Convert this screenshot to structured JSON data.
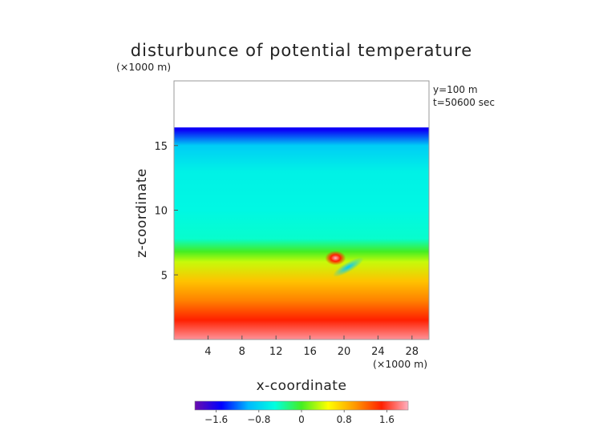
{
  "chart_data": {
    "type": "heatmap",
    "title": "disturbunce of potential temperature",
    "unit_top": "(×1000 m)",
    "unit_bottom": "(×1000 m)",
    "xlabel": "x-coordinate",
    "ylabel": "z-coordinate",
    "annotations": [
      "y=100 m",
      "t=50600 sec"
    ],
    "xlim": [
      0,
      30
    ],
    "ylim": [
      0,
      20
    ],
    "x_ticks": [
      4,
      8,
      12,
      16,
      20,
      24,
      28
    ],
    "y_ticks": [
      5,
      10,
      15
    ],
    "model_top": 16.4,
    "colorbar": {
      "min": -2.0,
      "max": 2.0,
      "ticks": [
        "−1.6",
        "−0.8",
        "0",
        "0.8",
        "1.6"
      ],
      "tick_values": [
        -1.6,
        -0.8,
        0,
        0.8,
        1.6
      ],
      "colormap": [
        "#6a0dad",
        "#0000ff",
        "#00b8ff",
        "#00ffe0",
        "#44ee22",
        "#ffff00",
        "#ff9900",
        "#ff2000",
        "#ffb0c0"
      ]
    },
    "field_profile": [
      {
        "z": 0.0,
        "value": 1.9
      },
      {
        "z": 1.5,
        "value": 1.5
      },
      {
        "z": 3.0,
        "value": 1.1
      },
      {
        "z": 4.5,
        "value": 0.8
      },
      {
        "z": 6.0,
        "value": 0.35
      },
      {
        "z": 6.8,
        "value": 0.0
      },
      {
        "z": 7.8,
        "value": -0.45
      },
      {
        "z": 10.0,
        "value": -0.55
      },
      {
        "z": 13.0,
        "value": -0.6
      },
      {
        "z": 15.0,
        "value": -0.85
      },
      {
        "z": 16.2,
        "value": -1.55
      }
    ],
    "features": [
      {
        "name": "warm anomaly",
        "x": 19.0,
        "z": 6.3,
        "value": 1.9
      },
      {
        "name": "cold tongue",
        "x": 20.5,
        "z": 5.6,
        "value": -0.4
      }
    ]
  }
}
